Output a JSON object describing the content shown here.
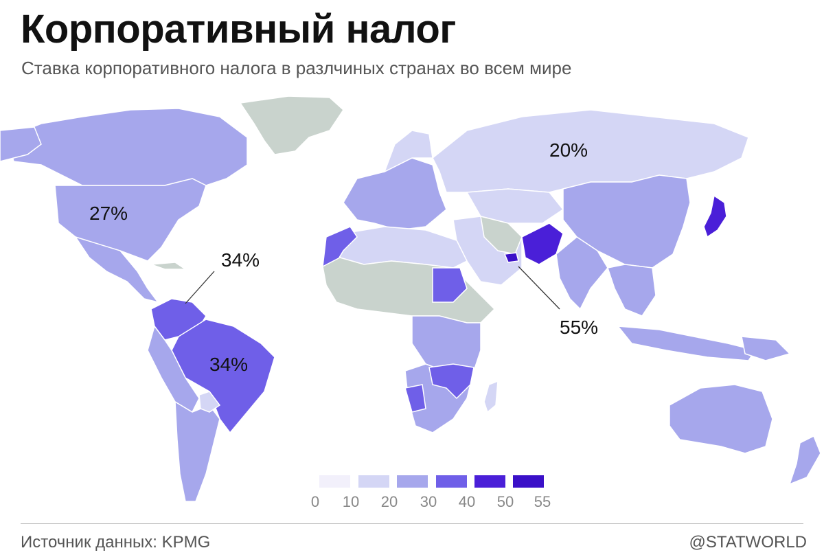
{
  "header": {
    "title": "Корпоративный налог",
    "subtitle": "Ставка корпоративного налога в разлчиных странах во всем мире"
  },
  "map": {
    "annotations": [
      {
        "id": "russia",
        "text": "20%"
      },
      {
        "id": "usa",
        "text": "27%"
      },
      {
        "id": "venezuela",
        "text": "34%"
      },
      {
        "id": "brazil",
        "text": "34%"
      },
      {
        "id": "uae",
        "text": "55%"
      }
    ],
    "colors": {
      "no_data": "#c9d3cd",
      "c0_10": "#f2f0fb",
      "c10_20": "#d4d6f5",
      "c20_30": "#a6a7ec",
      "c30_40": "#6f5fe8",
      "c40_50": "#4a1fd8",
      "c50_55": "#3a10c8"
    }
  },
  "legend": {
    "ticks": [
      "0",
      "10",
      "20",
      "30",
      "40",
      "50",
      "55"
    ],
    "swatches": [
      "#f2f0fb",
      "#d4d6f5",
      "#a6a7ec",
      "#6f5fe8",
      "#4a1fd8",
      "#3a10c8"
    ]
  },
  "footer": {
    "source": "Источник данных: KPMG",
    "brand": "@STATWORLD"
  }
}
